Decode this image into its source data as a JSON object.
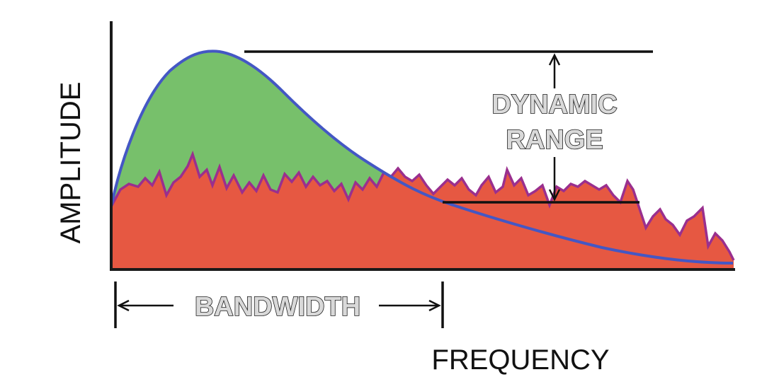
{
  "labels": {
    "y_axis": "AMPLITUDE",
    "x_axis": "FREQUENCY",
    "bandwidth": "BANDWIDTH",
    "dynamic_range_line1": "DYNAMIC",
    "dynamic_range_line2": "RANGE"
  },
  "colors": {
    "signal_fill": "#77c06b",
    "signal_line": "#4457c4",
    "noise_fill": "#e65842",
    "noise_line": "#9a2f8e",
    "axis": "#1a1a1a"
  }
}
